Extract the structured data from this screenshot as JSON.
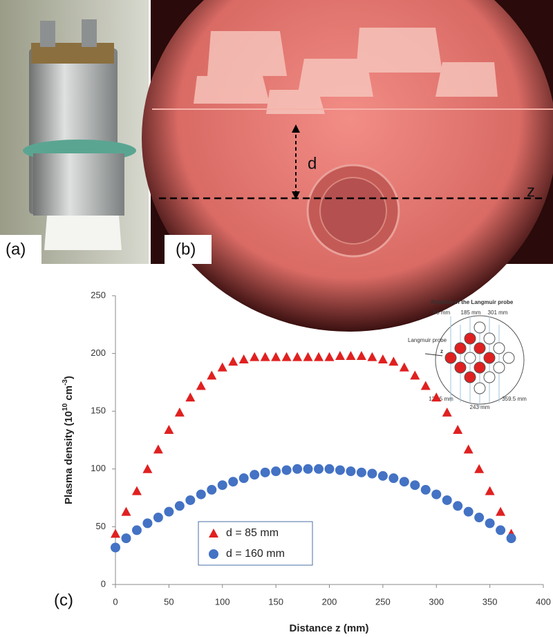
{
  "panels": {
    "a": "(a)",
    "b": "(b)",
    "d": "d",
    "z": "z"
  },
  "chart_data": {
    "type": "scatter",
    "panel_label": "(c)",
    "xlabel": "Distance z (mm)",
    "ylabel": [
      {
        "text": "Plasma density (10"
      },
      {
        "text": "10",
        "sup": true
      },
      {
        "text": " cm"
      },
      {
        "text": "-3",
        "sup": true
      },
      {
        "text": ")"
      }
    ],
    "x": [
      0,
      10,
      20,
      30,
      40,
      50,
      60,
      70,
      80,
      90,
      100,
      110,
      120,
      130,
      140,
      150,
      160,
      170,
      180,
      190,
      200,
      210,
      220,
      230,
      240,
      250,
      260,
      270,
      280,
      290,
      300,
      310,
      320,
      330,
      340,
      350,
      360,
      370
    ],
    "series": [
      {
        "name": "d = 85 mm",
        "color": "#e02020",
        "marker": "triangle",
        "values": [
          44,
          63,
          81,
          100,
          117,
          134,
          149,
          162,
          172,
          181,
          188,
          193,
          195,
          197,
          197,
          197,
          197,
          197,
          197,
          197,
          197,
          198,
          198,
          198,
          197,
          195,
          193,
          188,
          181,
          172,
          162,
          149,
          134,
          117,
          100,
          81,
          63,
          44
        ]
      },
      {
        "name": "d = 160 mm",
        "color": "#4472c4",
        "marker": "circle",
        "values": [
          32,
          40,
          47,
          53,
          58,
          63,
          68,
          73,
          78,
          82,
          86,
          89,
          92,
          95,
          97,
          98,
          99,
          100,
          100,
          100,
          100,
          99,
          98,
          97,
          96,
          94,
          92,
          89,
          86,
          82,
          78,
          73,
          68,
          63,
          58,
          53,
          47,
          40
        ]
      }
    ],
    "xlim": [
      0,
      400
    ],
    "xticks": [
      0,
      50,
      100,
      150,
      200,
      250,
      300,
      350,
      400
    ],
    "ylim": [
      0,
      250
    ],
    "yticks": [
      0,
      50,
      100,
      150,
      200,
      250
    ],
    "inset": {
      "title": "Position of the Langmuir probe",
      "top_labels": [
        "68 mm",
        "185 mm",
        "301 mm"
      ],
      "probe_label": "Langmuir probe",
      "z": "z",
      "bottom_labels": [
        "126.5 mm",
        "243 mm",
        "359.5 mm"
      ]
    }
  }
}
